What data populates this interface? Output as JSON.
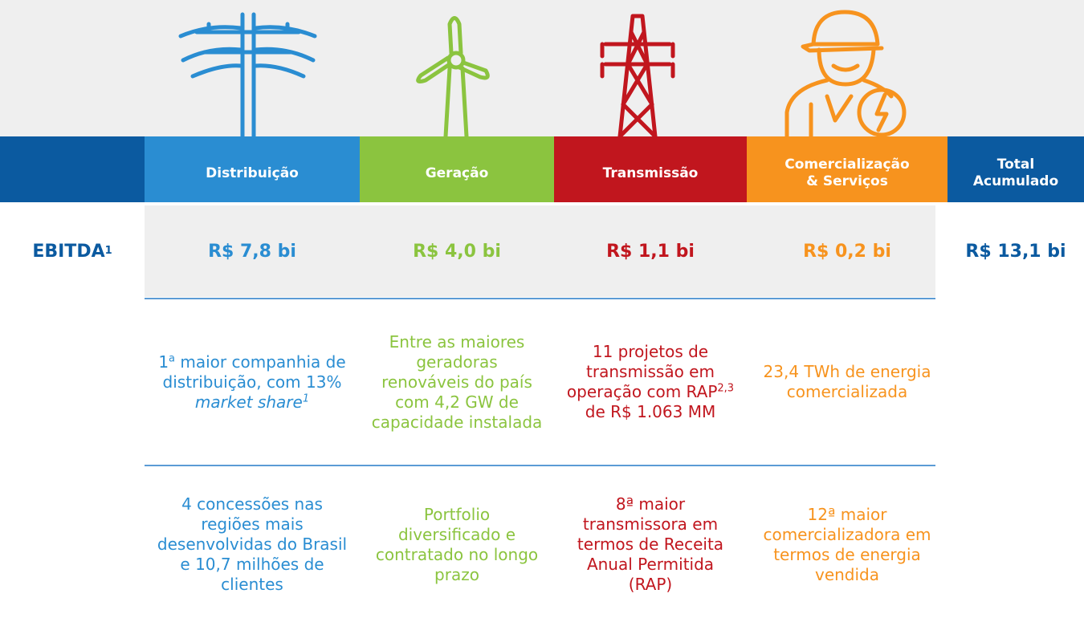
{
  "header": {
    "columns": [
      {
        "lines": [
          "Distribuição"
        ],
        "color": "#2a8dd2"
      },
      {
        "lines": [
          "Geração"
        ],
        "color": "#8bc43f"
      },
      {
        "lines": [
          "Transmissão"
        ],
        "color": "#c1161e"
      },
      {
        "lines": [
          "Comercialização",
          "& Serviços"
        ],
        "color": "#f7931e"
      }
    ],
    "total": {
      "lines": [
        "Total",
        "Acumulado"
      ],
      "color": "#0b5aa0"
    }
  },
  "ebitda": {
    "label": "EBITDA",
    "label_sup": "1",
    "values": [
      "R$ 7,8 bi",
      "R$ 4,0 bi",
      "R$ 1,1 bi",
      "R$ 0,2 bi"
    ],
    "total": "R$ 13,1 bi"
  },
  "rows": [
    [
      [
        {
          "text": "1"
        },
        {
          "text": "a",
          "style": "sup"
        },
        {
          "text": " maior companhia de distribuição, com 13% "
        },
        {
          "text": "market share",
          "style": "italic"
        },
        {
          "text": "1",
          "style": "sup-italic"
        }
      ],
      [
        {
          "text": "Entre as maiores geradoras renováveis do país com 4,2 GW de capacidade instalada"
        }
      ],
      [
        {
          "text": "11 projetos de transmissão em operação com RAP"
        },
        {
          "text": "2,3",
          "style": "sup"
        },
        {
          "text": " de R$ 1.063 MM"
        }
      ],
      [
        {
          "text": "23,4 TWh de energia comercializada"
        }
      ]
    ],
    [
      [
        {
          "text": "4 concessões nas regiões mais desenvolvidas do Brasil e 10,7 milhões de clientes"
        }
      ],
      [
        {
          "text": "Portfolio diversificado e contratado no longo prazo"
        }
      ],
      [
        {
          "text": "8ª maior transmissora em termos de Receita Anual Permitida (RAP)"
        }
      ],
      [
        {
          "text": "12ª maior comercializadora em termos de energia vendida"
        }
      ]
    ]
  ]
}
